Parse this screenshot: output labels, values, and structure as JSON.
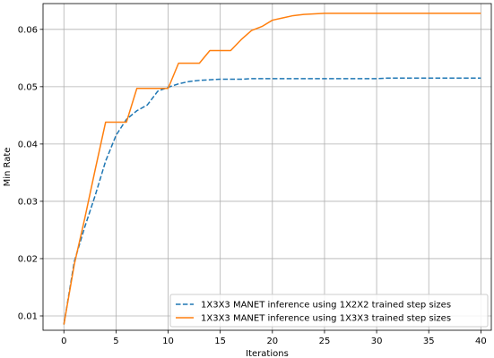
{
  "chart_data": {
    "type": "line",
    "title": "",
    "xlabel": "Iterations",
    "ylabel": "Min Rate",
    "xlim": [
      -2,
      41
    ],
    "ylim": [
      0.0075,
      0.0645
    ],
    "xticks": [
      0,
      5,
      10,
      15,
      20,
      25,
      30,
      35,
      40
    ],
    "xtick_labels": [
      "0",
      "5",
      "10",
      "15",
      "20",
      "25",
      "30",
      "35",
      "40"
    ],
    "yticks": [
      0.01,
      0.02,
      0.03,
      0.04,
      0.05,
      0.06
    ],
    "ytick_labels": [
      "0.01",
      "0.02",
      "0.03",
      "0.04",
      "0.05",
      "0.06"
    ],
    "grid": true,
    "legend_position": "lower-right",
    "series": [
      {
        "name": "1X3X3 MANET inference using 1X2X2 trained step sizes",
        "color": "#1f77b4",
        "style": "dashed",
        "x": [
          0,
          1,
          2,
          3,
          4,
          5,
          6,
          7,
          8,
          9,
          10,
          11,
          12,
          13,
          14,
          15,
          16,
          17,
          18,
          19,
          20,
          21,
          22,
          23,
          24,
          25,
          26,
          27,
          28,
          29,
          30,
          31,
          32,
          33,
          34,
          35,
          36,
          37,
          38,
          39,
          40
        ],
        "values": [
          0.0085,
          0.0195,
          0.0255,
          0.031,
          0.037,
          0.0415,
          0.0443,
          0.0458,
          0.0468,
          0.0492,
          0.0499,
          0.0505,
          0.0509,
          0.0511,
          0.0512,
          0.0513,
          0.0513,
          0.0513,
          0.0514,
          0.0514,
          0.0514,
          0.0514,
          0.0514,
          0.0514,
          0.0514,
          0.0514,
          0.0514,
          0.0514,
          0.0514,
          0.0514,
          0.0514,
          0.0515,
          0.0515,
          0.0515,
          0.0515,
          0.0515,
          0.0515,
          0.0515,
          0.0515,
          0.0515,
          0.0515
        ]
      },
      {
        "name": "1X3X3 MANET inference using 1X3X3 trained step sizes",
        "color": "#ff7f0e",
        "style": "solid",
        "x": [
          0,
          1,
          2,
          3,
          4,
          5,
          6,
          7,
          8,
          9,
          10,
          11,
          12,
          13,
          14,
          15,
          16,
          17,
          18,
          19,
          20,
          21,
          22,
          23,
          24,
          25,
          26,
          27,
          28,
          29,
          30,
          31,
          32,
          33,
          34,
          35,
          36,
          37,
          38,
          39,
          40
        ],
        "values": [
          0.0085,
          0.019,
          0.027,
          0.0355,
          0.0438,
          0.0438,
          0.0438,
          0.0497,
          0.0497,
          0.0497,
          0.0497,
          0.0541,
          0.0541,
          0.0541,
          0.0563,
          0.0563,
          0.0563,
          0.0582,
          0.0598,
          0.0605,
          0.0616,
          0.062,
          0.0624,
          0.0626,
          0.0627,
          0.0628,
          0.0628,
          0.0628,
          0.0628,
          0.0628,
          0.0628,
          0.0628,
          0.0628,
          0.0628,
          0.0628,
          0.0628,
          0.0628,
          0.0628,
          0.0628,
          0.0628,
          0.0628
        ]
      }
    ]
  }
}
